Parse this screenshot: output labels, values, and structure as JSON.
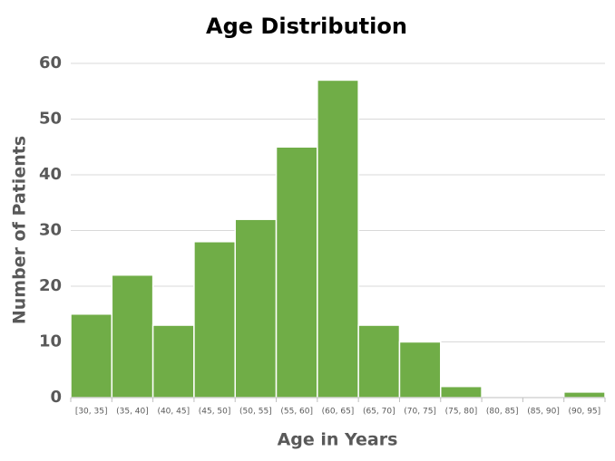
{
  "chart_data": {
    "type": "bar",
    "title": "Age Distribution",
    "x_label": "Age in Years",
    "y_label": "Number of Patients",
    "categories": [
      "[30, 35]",
      "(35, 40]",
      "(40, 45]",
      "(45, 50]",
      "(50, 55]",
      "(55, 60]",
      "(60, 65]",
      "(65, 70]",
      "(70, 75]",
      "(75, 80]",
      "(80, 85]",
      "(85, 90]",
      "(90, 95]"
    ],
    "values": [
      15,
      22,
      13,
      28,
      32,
      45,
      57,
      13,
      10,
      2,
      0,
      0,
      1
    ],
    "color": "#70ad47",
    "ylim": [
      0,
      60
    ],
    "yticks": [
      0,
      10,
      20,
      30,
      40,
      50,
      60
    ],
    "grid": true
  }
}
